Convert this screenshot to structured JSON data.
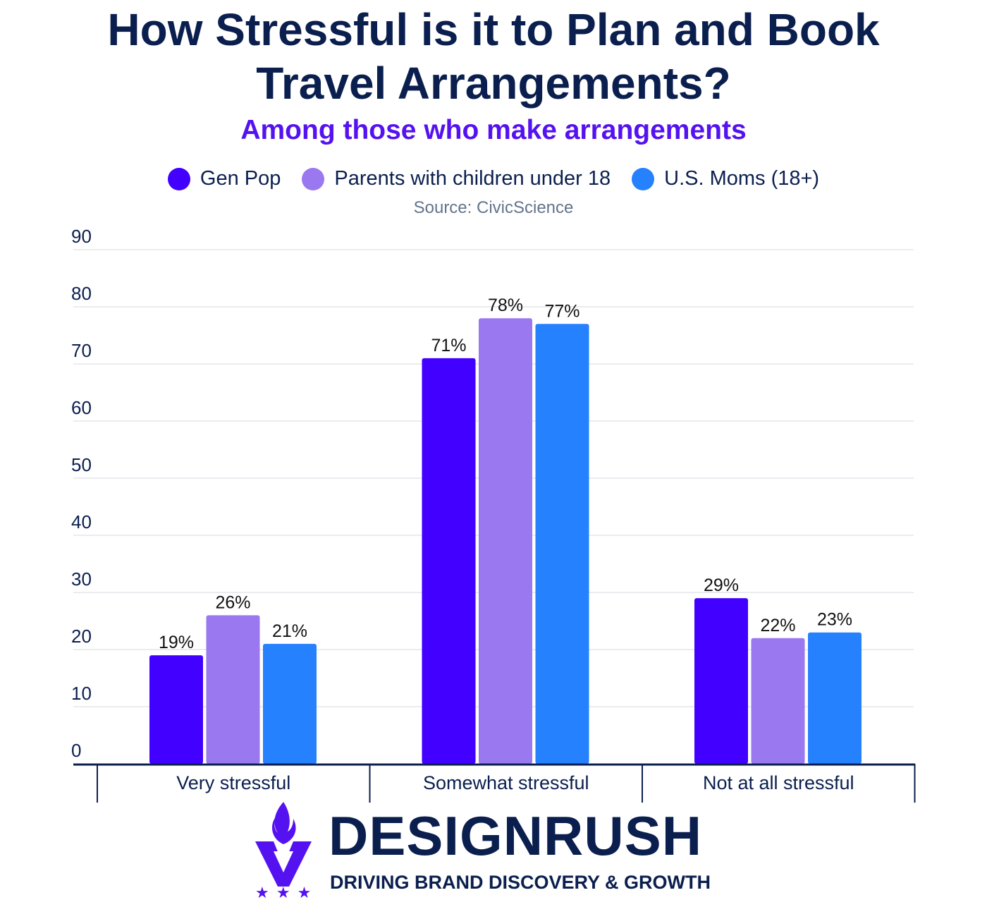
{
  "header": {
    "title_line1": "How Stressful is it to Plan and Book",
    "title_line2": "Travel Arrangements?",
    "subtitle": "Among those who make arrangements",
    "source": "Source: CivicScience"
  },
  "legend": [
    {
      "label": "Gen Pop",
      "color": "#4100ff"
    },
    {
      "label": "Parents with children under 18",
      "color": "#9a78f0"
    },
    {
      "label": "U.S. Moms (18+)",
      "color": "#2681ff"
    }
  ],
  "chart_data": {
    "type": "bar",
    "title": "How Stressful is it to Plan and Book Travel Arrangements?",
    "subtitle": "Among those who make arrangements",
    "categories": [
      "Very stressful",
      "Somewhat stressful",
      "Not at all stressful"
    ],
    "series": [
      {
        "name": "Gen Pop",
        "values": [
          19,
          71,
          29
        ],
        "color": "#4100ff"
      },
      {
        "name": "Parents with children under 18",
        "values": [
          26,
          78,
          22
        ],
        "color": "#9a78f0"
      },
      {
        "name": "U.S. Moms (18+)",
        "values": [
          21,
          77,
          23
        ],
        "color": "#2681ff"
      }
    ],
    "value_suffix": "%",
    "yticks": [
      0,
      10,
      20,
      30,
      40,
      50,
      60,
      70,
      80,
      90
    ],
    "ylim": [
      0,
      90
    ],
    "grid": true,
    "legend_position": "top-center"
  },
  "brand": {
    "name": "DESIGNRUSH",
    "tagline": "DRIVING BRAND DISCOVERY & GROWTH",
    "logo_icon": "torch-shield-icon",
    "stars": "★ ★ ★"
  }
}
